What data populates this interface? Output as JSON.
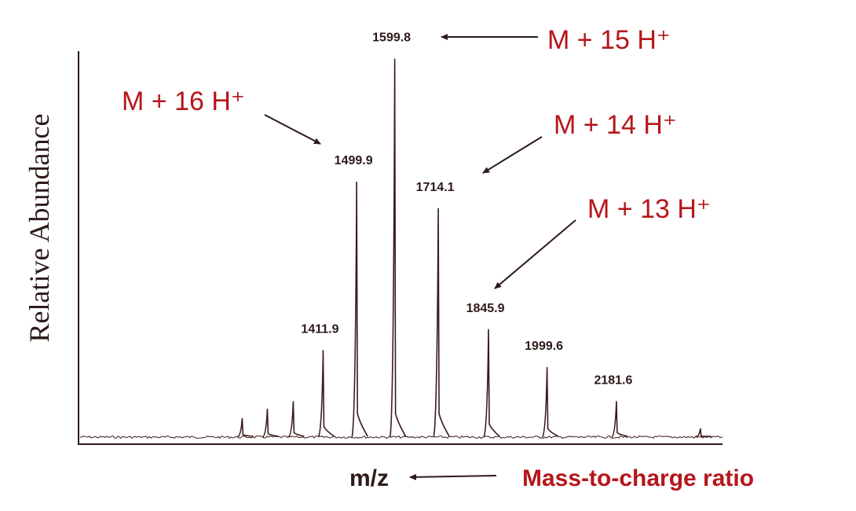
{
  "chart_data": {
    "type": "spectrum",
    "y_label": "Relative Abundance",
    "x_label": "m/z",
    "x_note": "Mass-to-charge ratio",
    "x": [
      1199.5,
      1265.5,
      1333.5,
      1411.9,
      1499.9,
      1599.8,
      1714.1,
      1845.9,
      1999.6,
      2181.6,
      2402
    ],
    "values": [
      5,
      7.5,
      9.5,
      23,
      67.5,
      100,
      60.5,
      28.5,
      18.5,
      9.5,
      2.3
    ],
    "show_label": [
      false,
      false,
      false,
      true,
      true,
      true,
      true,
      true,
      true,
      true,
      false
    ],
    "xlim": [
      770,
      2460
    ],
    "ylim": [
      0,
      102
    ],
    "color": "#3b1b1b",
    "annotations": [
      {
        "text": "M + 15 H⁺",
        "peak": 5
      },
      {
        "text": "M + 16 H⁺",
        "peak": 4
      },
      {
        "text": "M + 14 H⁺",
        "peak": 6
      },
      {
        "text": "M + 13 H⁺",
        "peak": 7
      }
    ]
  }
}
